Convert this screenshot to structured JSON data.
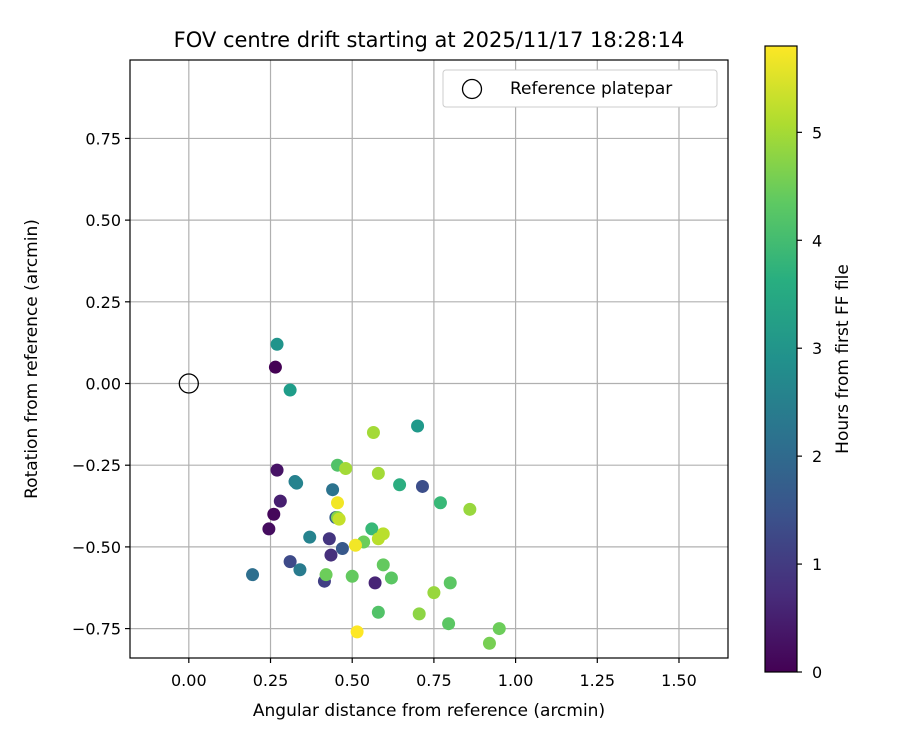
{
  "chart_data": {
    "type": "scatter",
    "title": "FOV centre drift starting at 2025/11/17 18:28:14",
    "xlabel": "Angular distance from reference (arcmin)",
    "ylabel": "Rotation from reference (arcmin)",
    "xlim": [
      -0.18,
      1.65
    ],
    "ylim": [
      -0.84,
      0.99
    ],
    "xticks": [
      0.0,
      0.25,
      0.5,
      0.75,
      1.0,
      1.25,
      1.5
    ],
    "xtick_labels": [
      "0.00",
      "0.25",
      "0.50",
      "0.75",
      "1.00",
      "1.25",
      "1.50"
    ],
    "yticks": [
      -0.75,
      -0.5,
      -0.25,
      0.0,
      0.25,
      0.5,
      0.75
    ],
    "ytick_labels": [
      "−0.75",
      "−0.50",
      "−0.25",
      "0.00",
      "0.25",
      "0.50",
      "0.75"
    ],
    "grid": true,
    "legend": {
      "position": "top-right",
      "entries": [
        "Reference platepar"
      ]
    },
    "reference": {
      "x": 0.0,
      "y": 0.0,
      "label": "Reference platepar"
    },
    "colorbar": {
      "label": "Hours from first FF file",
      "range": [
        0,
        5.8
      ],
      "ticks": [
        0,
        1,
        2,
        3,
        4,
        5
      ],
      "tick_labels": [
        "0",
        "1",
        "2",
        "3",
        "4",
        "5"
      ],
      "colormap": "viridis"
    },
    "points": [
      {
        "x": 0.265,
        "y": 0.05,
        "h": 0.0
      },
      {
        "x": 0.26,
        "y": -0.4,
        "h": 0.1
      },
      {
        "x": 0.245,
        "y": -0.445,
        "h": 0.2
      },
      {
        "x": 0.27,
        "y": -0.265,
        "h": 0.3
      },
      {
        "x": 0.28,
        "y": -0.36,
        "h": 0.5
      },
      {
        "x": 0.57,
        "y": -0.61,
        "h": 0.6
      },
      {
        "x": 0.435,
        "y": -0.525,
        "h": 0.8
      },
      {
        "x": 0.43,
        "y": -0.475,
        "h": 0.9
      },
      {
        "x": 0.415,
        "y": -0.605,
        "h": 1.1
      },
      {
        "x": 0.31,
        "y": -0.545,
        "h": 1.3
      },
      {
        "x": 0.715,
        "y": -0.315,
        "h": 1.4
      },
      {
        "x": 0.47,
        "y": -0.505,
        "h": 1.6
      },
      {
        "x": 0.45,
        "y": -0.41,
        "h": 1.7
      },
      {
        "x": 0.195,
        "y": -0.585,
        "h": 2.1
      },
      {
        "x": 0.44,
        "y": -0.325,
        "h": 2.2
      },
      {
        "x": 0.34,
        "y": -0.57,
        "h": 2.4
      },
      {
        "x": 0.325,
        "y": -0.3,
        "h": 2.5
      },
      {
        "x": 0.33,
        "y": -0.305,
        "h": 2.6
      },
      {
        "x": 0.37,
        "y": -0.47,
        "h": 2.6
      },
      {
        "x": 0.27,
        "y": 0.12,
        "h": 3.0
      },
      {
        "x": 0.7,
        "y": -0.13,
        "h": 3.1
      },
      {
        "x": 0.31,
        "y": -0.02,
        "h": 3.2
      },
      {
        "x": 0.645,
        "y": -0.31,
        "h": 3.6
      },
      {
        "x": 0.77,
        "y": -0.365,
        "h": 3.9
      },
      {
        "x": 0.56,
        "y": -0.445,
        "h": 3.9
      },
      {
        "x": 0.58,
        "y": -0.7,
        "h": 4.2
      },
      {
        "x": 0.455,
        "y": -0.25,
        "h": 4.2
      },
      {
        "x": 0.8,
        "y": -0.61,
        "h": 4.3
      },
      {
        "x": 0.795,
        "y": -0.735,
        "h": 4.3
      },
      {
        "x": 0.62,
        "y": -0.595,
        "h": 4.3
      },
      {
        "x": 0.595,
        "y": -0.555,
        "h": 4.4
      },
      {
        "x": 0.5,
        "y": -0.59,
        "h": 4.4
      },
      {
        "x": 0.42,
        "y": -0.585,
        "h": 4.5
      },
      {
        "x": 0.535,
        "y": -0.485,
        "h": 4.5
      },
      {
        "x": 0.95,
        "y": -0.75,
        "h": 4.5
      },
      {
        "x": 0.92,
        "y": -0.795,
        "h": 4.6
      },
      {
        "x": 0.455,
        "y": -0.41,
        "h": 4.7
      },
      {
        "x": 0.705,
        "y": -0.705,
        "h": 4.8
      },
      {
        "x": 0.75,
        "y": -0.64,
        "h": 4.9
      },
      {
        "x": 0.86,
        "y": -0.385,
        "h": 4.9
      },
      {
        "x": 0.565,
        "y": -0.15,
        "h": 5.0
      },
      {
        "x": 0.48,
        "y": -0.26,
        "h": 5.0
      },
      {
        "x": 0.58,
        "y": -0.275,
        "h": 5.0
      },
      {
        "x": 0.595,
        "y": -0.46,
        "h": 5.2
      },
      {
        "x": 0.58,
        "y": -0.475,
        "h": 5.2
      },
      {
        "x": 0.46,
        "y": -0.415,
        "h": 5.3
      },
      {
        "x": 0.455,
        "y": -0.365,
        "h": 5.7
      },
      {
        "x": 0.51,
        "y": -0.495,
        "h": 5.7
      },
      {
        "x": 0.515,
        "y": -0.76,
        "h": 5.8
      }
    ]
  }
}
